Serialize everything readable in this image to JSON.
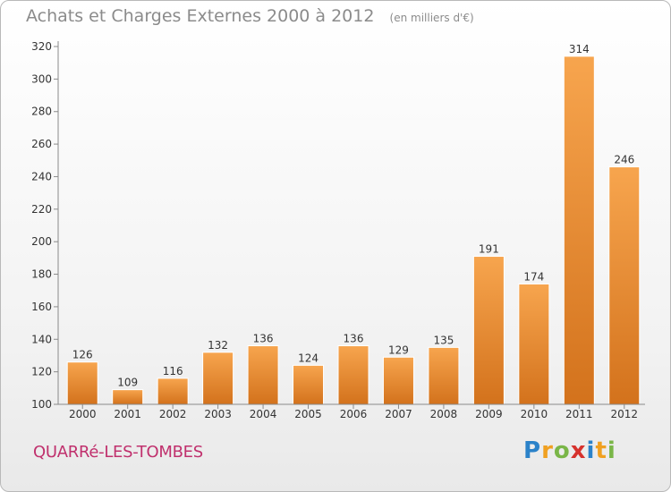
{
  "chart_data": {
    "type": "bar",
    "title": "Achats et Charges Externes 2000 à 2012",
    "subtitle": "(en milliers d'€)",
    "categories": [
      "2000",
      "2001",
      "2002",
      "2003",
      "2004",
      "2005",
      "2006",
      "2007",
      "2008",
      "2009",
      "2010",
      "2011",
      "2012"
    ],
    "values": [
      126,
      109,
      116,
      132,
      136,
      124,
      136,
      129,
      135,
      191,
      174,
      314,
      246
    ],
    "ylim": [
      100,
      320
    ],
    "yticks": [
      100,
      120,
      140,
      160,
      180,
      200,
      220,
      240,
      260,
      280,
      300,
      320
    ],
    "grid": false,
    "bar_color": "#f39c3a",
    "bar_color_dark": "#cf6f1a"
  },
  "footer": {
    "commune": "QUARRé-LES-TOMBES",
    "logo_letters": [
      "P",
      "r",
      "o",
      "x",
      "i",
      "t",
      "i"
    ],
    "logo_colors": [
      "#2b82c9",
      "#f0a020",
      "#7ab648",
      "#d6322d",
      "#2b82c9",
      "#f0a020",
      "#7ab648"
    ]
  }
}
